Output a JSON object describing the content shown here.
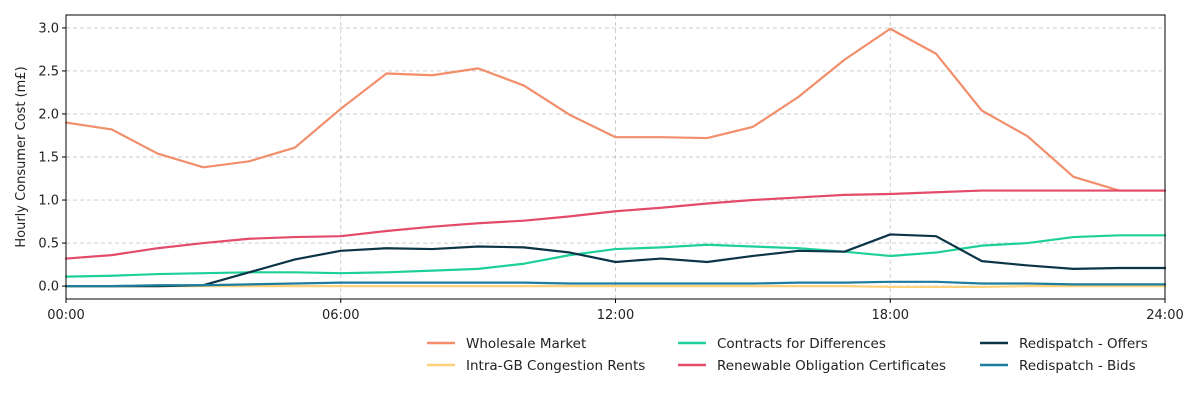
{
  "chart_data": {
    "type": "line",
    "title": "",
    "xlabel": "",
    "ylabel": "Hourly Consumer Cost (m£)",
    "x": [
      0.0,
      1.0,
      2.0,
      3.0,
      4.0,
      5.0,
      6.0,
      7.0,
      8.0,
      9.0,
      10.0,
      11.0,
      12.0,
      13.0,
      14.0,
      15.0,
      16.0,
      17.0,
      18.0,
      19.0,
      20.0,
      21.0,
      22.0,
      23.0,
      24.0
    ],
    "x_ticks": [
      0,
      6,
      12,
      18,
      24
    ],
    "x_tick_labels": [
      "00:00",
      "06:00",
      "12:00",
      "18:00",
      "24:00"
    ],
    "xlim": [
      0,
      24
    ],
    "y_ticks": [
      0.0,
      0.5,
      1.0,
      1.5,
      2.0,
      2.5,
      3.0
    ],
    "y_tick_labels": [
      "0.0",
      "0.5",
      "1.0",
      "1.5",
      "2.0",
      "2.5",
      "3.0"
    ],
    "ylim": [
      -0.15,
      3.15
    ],
    "grid": true,
    "legend_position": "bottom-center",
    "series": [
      {
        "name": "Wholesale Market",
        "color": "#f28e6b",
        "values": [
          1.9,
          1.82,
          1.54,
          1.38,
          1.45,
          1.61,
          2.06,
          2.47,
          2.45,
          2.53,
          2.33,
          1.99,
          1.73,
          1.73,
          1.72,
          1.85,
          2.2,
          2.63,
          2.99,
          2.7,
          2.04,
          1.74,
          1.27,
          1.11,
          1.11
        ]
      },
      {
        "name": "Intra-GB Congestion Rents",
        "color": "#fdd27a",
        "values": [
          0.0,
          0.0,
          0.0,
          0.0,
          0.0,
          0.0,
          0.0,
          0.0,
          0.0,
          0.0,
          0.0,
          0.0,
          0.0,
          0.0,
          0.0,
          0.0,
          0.0,
          0.0,
          -0.01,
          -0.01,
          -0.01,
          0.0,
          0.0,
          0.0,
          0.0
        ]
      },
      {
        "name": "Contracts for Differences",
        "color": "#1ecf9a",
        "values": [
          0.11,
          0.12,
          0.14,
          0.15,
          0.16,
          0.16,
          0.15,
          0.16,
          0.18,
          0.2,
          0.26,
          0.36,
          0.43,
          0.45,
          0.48,
          0.46,
          0.44,
          0.4,
          0.35,
          0.39,
          0.47,
          0.5,
          0.57,
          0.59,
          0.59
        ]
      },
      {
        "name": "Renewable Obligation Certificates",
        "color": "#e34b6b",
        "values": [
          0.32,
          0.36,
          0.44,
          0.5,
          0.55,
          0.57,
          0.58,
          0.64,
          0.69,
          0.73,
          0.76,
          0.81,
          0.87,
          0.91,
          0.96,
          1.0,
          1.03,
          1.06,
          1.07,
          1.09,
          1.11,
          1.11,
          1.11,
          1.11,
          1.11
        ]
      },
      {
        "name": "Redispatch - Offers",
        "color": "#0c3547",
        "values": [
          0.0,
          0.0,
          0.0,
          0.01,
          0.16,
          0.31,
          0.41,
          0.44,
          0.43,
          0.46,
          0.45,
          0.39,
          0.28,
          0.32,
          0.28,
          0.35,
          0.41,
          0.4,
          0.6,
          0.58,
          0.29,
          0.24,
          0.2,
          0.21,
          0.21
        ]
      },
      {
        "name": "Redispatch - Bids",
        "color": "#1f7d9c",
        "values": [
          0.0,
          0.0,
          0.01,
          0.01,
          0.02,
          0.03,
          0.04,
          0.04,
          0.04,
          0.04,
          0.04,
          0.03,
          0.03,
          0.03,
          0.03,
          0.03,
          0.04,
          0.04,
          0.05,
          0.05,
          0.03,
          0.03,
          0.02,
          0.02,
          0.02
        ]
      }
    ]
  }
}
